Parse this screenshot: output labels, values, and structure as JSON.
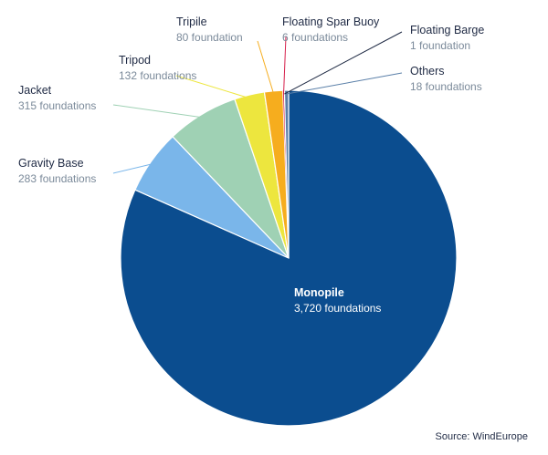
{
  "chart_data": {
    "type": "pie",
    "slices": [
      {
        "label": "Monopile",
        "value": 3720,
        "value_text": "3,720 foundations",
        "color": "#0b4d8f"
      },
      {
        "label": "Gravity Base",
        "value": 283,
        "value_text": "283 foundations",
        "color": "#7ab6ea"
      },
      {
        "label": "Jacket",
        "value": 315,
        "value_text": "315 foundations",
        "color": "#9fd1b4"
      },
      {
        "label": "Tripod",
        "value": 132,
        "value_text": "132 foundations",
        "color": "#ede63e"
      },
      {
        "label": "Tripile",
        "value": 80,
        "value_text": "80 foundation",
        "color": "#f6ad1e"
      },
      {
        "label": "Floating Spar Buoy",
        "value": 6,
        "value_text": "6 foundations",
        "color": "#d6204c"
      },
      {
        "label": "Floating Barge",
        "value": 1,
        "value_text": "1 foundation",
        "color": "#1f2a44"
      },
      {
        "label": "Others",
        "value": 18,
        "value_text": "18 foundations",
        "color": "#5a7fa8"
      }
    ],
    "source": "Source: WindEurope"
  }
}
